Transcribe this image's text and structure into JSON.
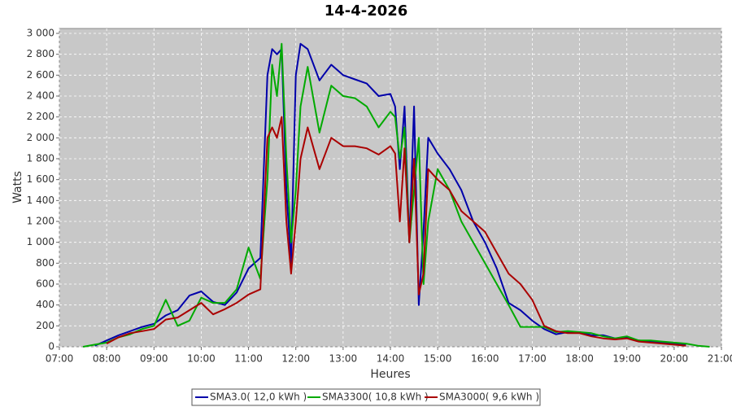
{
  "chart_data": {
    "type": "line",
    "title": "14-4-2026",
    "x_label": "Heures",
    "y_label": "Watts",
    "x": [
      7.5,
      7.75,
      8,
      8.25,
      8.5,
      8.75,
      9,
      9.25,
      9.5,
      9.75,
      10,
      10.25,
      10.5,
      10.75,
      11,
      11.25,
      11.4,
      11.5,
      11.6,
      11.7,
      11.8,
      11.9,
      12.0,
      12.1,
      12.25,
      12.5,
      12.75,
      13,
      13.25,
      13.5,
      13.75,
      14,
      14.1,
      14.2,
      14.3,
      14.4,
      14.5,
      14.6,
      14.7,
      14.8,
      15,
      15.25,
      15.5,
      15.75,
      16,
      16.25,
      16.5,
      16.75,
      17,
      17.25,
      17.5,
      17.75,
      18,
      18.25,
      18.5,
      18.75,
      19,
      19.25,
      19.5,
      19.75,
      20,
      20.25,
      20.5,
      20.75
    ],
    "series": [
      {
        "name": "SMA3.0( 12,0 kWh )",
        "color": "#0000aa",
        "values": [
          null,
          10,
          60,
          110,
          150,
          190,
          220,
          300,
          350,
          490,
          530,
          430,
          400,
          520,
          750,
          850,
          2600,
          2850,
          2800,
          2850,
          1500,
          800,
          2600,
          2900,
          2850,
          2550,
          2700,
          2600,
          2560,
          2520,
          2400,
          2420,
          2300,
          1700,
          2300,
          1000,
          2300,
          400,
          1100,
          2000,
          1850,
          1700,
          1500,
          1200,
          1000,
          750,
          420,
          350,
          250,
          170,
          120,
          140,
          140,
          110,
          110,
          80,
          90,
          60,
          50,
          40,
          30,
          20,
          null,
          null
        ]
      },
      {
        "name": "SMA3300( 10,8 kWh )",
        "color": "#00aa00",
        "values": [
          0,
          20,
          40,
          90,
          120,
          170,
          200,
          450,
          200,
          250,
          470,
          420,
          420,
          550,
          950,
          650,
          1600,
          2700,
          2400,
          2900,
          1800,
          1000,
          1500,
          2300,
          2680,
          2050,
          2500,
          2400,
          2380,
          2300,
          2100,
          2250,
          2200,
          1800,
          2100,
          1000,
          1500,
          2000,
          600,
          1200,
          1700,
          1500,
          1200,
          1000,
          800,
          600,
          400,
          190,
          190,
          190,
          140,
          150,
          140,
          130,
          100,
          80,
          100,
          60,
          60,
          50,
          40,
          30,
          10,
          0
        ]
      },
      {
        "name": "SMA3000( 9,6 kWh )",
        "color": "#aa0000",
        "values": [
          null,
          null,
          30,
          90,
          130,
          150,
          170,
          260,
          280,
          350,
          420,
          310,
          360,
          420,
          500,
          550,
          2000,
          2100,
          2000,
          2200,
          1200,
          700,
          1200,
          1800,
          2100,
          1700,
          2000,
          1920,
          1920,
          1900,
          1840,
          1920,
          1850,
          1200,
          1900,
          1000,
          1800,
          500,
          700,
          1700,
          1600,
          1500,
          1300,
          1200,
          1100,
          900,
          700,
          600,
          450,
          200,
          150,
          130,
          130,
          100,
          80,
          70,
          80,
          50,
          40,
          30,
          20,
          10,
          null,
          null
        ]
      }
    ],
    "xlim": [
      7,
      21
    ],
    "xticks": [
      {
        "value": 7,
        "label": "07:00"
      },
      {
        "value": 8,
        "label": "08:00"
      },
      {
        "value": 9,
        "label": "09:00"
      },
      {
        "value": 10,
        "label": "10:00"
      },
      {
        "value": 11,
        "label": "11:00"
      },
      {
        "value": 12,
        "label": "12:00"
      },
      {
        "value": 13,
        "label": "13:00"
      },
      {
        "value": 14,
        "label": "14:00"
      },
      {
        "value": 15,
        "label": "15:00"
      },
      {
        "value": 16,
        "label": "16:00"
      },
      {
        "value": 17,
        "label": "17:00"
      },
      {
        "value": 18,
        "label": "18:00"
      },
      {
        "value": 19,
        "label": "19:00"
      },
      {
        "value": 20,
        "label": "20:00"
      },
      {
        "value": 21,
        "label": "21:00"
      }
    ],
    "ylim": [
      0,
      3000
    ],
    "yticks": [
      0,
      200,
      400,
      600,
      800,
      {
        "value": 1000,
        "label": "1 000"
      },
      {
        "value": 1200,
        "label": "1 200"
      },
      {
        "value": 1400,
        "label": "1 400"
      },
      {
        "value": 1600,
        "label": "1 600"
      },
      {
        "value": 1800,
        "label": "1 800"
      },
      {
        "value": 2000,
        "label": "2 000"
      },
      {
        "value": 2200,
        "label": "2 200"
      },
      {
        "value": 2400,
        "label": "2 400"
      },
      {
        "value": 2600,
        "label": "2 600"
      },
      {
        "value": 2800,
        "label": "2 800"
      },
      {
        "value": 3000,
        "label": "3 000"
      }
    ],
    "grid": true,
    "legend": "bottom"
  }
}
